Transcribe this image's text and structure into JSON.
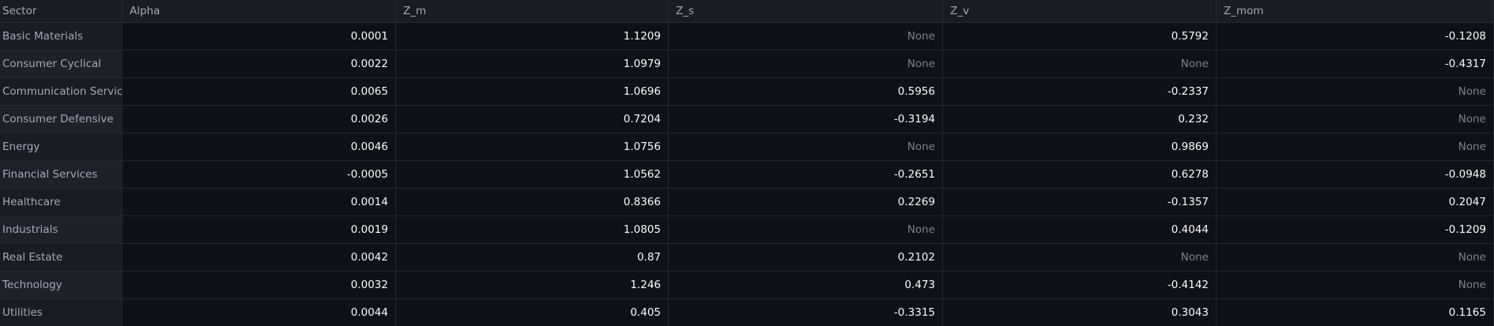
{
  "table": {
    "columns": [
      "Sector",
      "Alpha",
      "Z_m",
      "Z_s",
      "Z_v",
      "Z_mom"
    ],
    "rows": [
      {
        "sector": "Basic Materials",
        "alpha": "0.0001",
        "z_m": "1.1209",
        "z_s": "None",
        "z_v": "0.5792",
        "z_mom": "-0.1208"
      },
      {
        "sector": "Consumer Cyclical",
        "alpha": "0.0022",
        "z_m": "1.0979",
        "z_s": "None",
        "z_v": "None",
        "z_mom": "-0.4317"
      },
      {
        "sector": "Communication Services",
        "alpha": "0.0065",
        "z_m": "1.0696",
        "z_s": "0.5956",
        "z_v": "-0.2337",
        "z_mom": "None"
      },
      {
        "sector": "Consumer Defensive",
        "alpha": "0.0026",
        "z_m": "0.7204",
        "z_s": "-0.3194",
        "z_v": "0.232",
        "z_mom": "None"
      },
      {
        "sector": "Energy",
        "alpha": "0.0046",
        "z_m": "1.0756",
        "z_s": "None",
        "z_v": "0.9869",
        "z_mom": "None"
      },
      {
        "sector": "Financial Services",
        "alpha": "-0.0005",
        "z_m": "1.0562",
        "z_s": "-0.2651",
        "z_v": "0.6278",
        "z_mom": "-0.0948"
      },
      {
        "sector": "Healthcare",
        "alpha": "0.0014",
        "z_m": "0.8366",
        "z_s": "0.2269",
        "z_v": "-0.1357",
        "z_mom": "0.2047"
      },
      {
        "sector": "Industrials",
        "alpha": "0.0019",
        "z_m": "1.0805",
        "z_s": "None",
        "z_v": "0.4044",
        "z_mom": "-0.1209"
      },
      {
        "sector": "Real Estate",
        "alpha": "0.0042",
        "z_m": "0.87",
        "z_s": "0.2102",
        "z_v": "None",
        "z_mom": "None"
      },
      {
        "sector": "Technology",
        "alpha": "0.0032",
        "z_m": "1.246",
        "z_s": "0.473",
        "z_v": "-0.4142",
        "z_mom": "None"
      },
      {
        "sector": "Utilities",
        "alpha": "0.0044",
        "z_m": "0.405",
        "z_s": "-0.3315",
        "z_v": "0.3043",
        "z_mom": "0.1165"
      }
    ]
  },
  "colors": {
    "background": "#0e1117",
    "header_bg": "#1a1c24",
    "text": "#fafafa",
    "muted_text": "#a3a8b8",
    "none_text": "#7d818c",
    "grid_line": "#262730"
  }
}
